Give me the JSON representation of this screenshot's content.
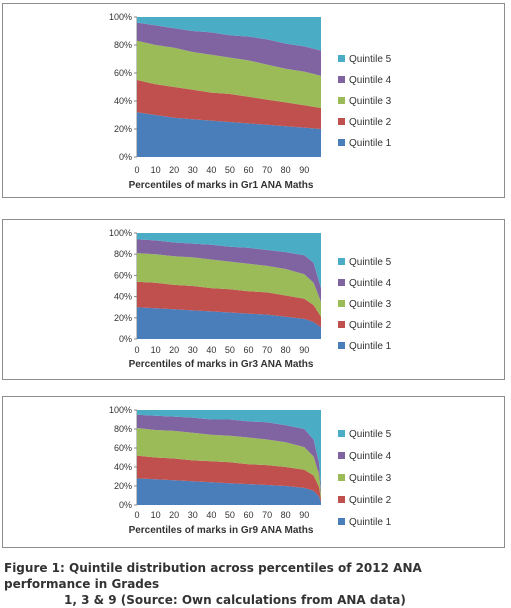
{
  "caption": {
    "line1": "Figure 1:  Quintile distribution across percentiles of 2012 ANA performance in Grades",
    "line2": "1, 3 & 9 (Source: Own calculations from ANA data)"
  },
  "colors": {
    "Quintile 1": "#4a7ebb",
    "Quintile 2": "#c0504d",
    "Quintile 3": "#9bbb59",
    "Quintile 4": "#8064a2",
    "Quintile 5": "#4bacc6"
  },
  "chart_data": [
    {
      "type": "area",
      "stacked": "percent",
      "xlabel": "Percentiles of marks in Gr1 ANA Maths",
      "x_ticks": [
        "0",
        "10",
        "20",
        "30",
        "40",
        "50",
        "60",
        "70",
        "80",
        "90"
      ],
      "y_ticks": [
        "0%",
        "20%",
        "40%",
        "60%",
        "80%",
        "100%"
      ],
      "ylim": [
        0,
        100
      ],
      "x": [
        0,
        10,
        20,
        30,
        40,
        50,
        60,
        70,
        80,
        90,
        99
      ],
      "legend": [
        "Quintile 5",
        "Quintile 4",
        "Quintile 3",
        "Quintile 2",
        "Quintile 1"
      ],
      "legend_position": "right",
      "series": [
        {
          "name": "Quintile 1",
          "values": [
            32,
            30,
            28,
            27,
            26,
            25,
            24,
            23,
            22,
            21,
            20
          ]
        },
        {
          "name": "Quintile 2",
          "values": [
            23,
            22,
            22,
            21,
            20,
            20,
            19,
            18,
            17,
            16,
            15
          ]
        },
        {
          "name": "Quintile 3",
          "values": [
            28,
            28,
            28,
            27,
            27,
            26,
            26,
            25,
            24,
            24,
            23
          ]
        },
        {
          "name": "Quintile 4",
          "values": [
            13,
            14,
            14,
            15,
            16,
            16,
            17,
            18,
            18,
            18,
            18
          ]
        },
        {
          "name": "Quintile 5",
          "values": [
            4,
            6,
            8,
            10,
            11,
            13,
            14,
            16,
            19,
            21,
            24
          ]
        }
      ]
    },
    {
      "type": "area",
      "stacked": "percent",
      "xlabel": "Percentiles of marks in Gr3 ANA Maths",
      "x_ticks": [
        "0",
        "10",
        "20",
        "30",
        "40",
        "50",
        "60",
        "70",
        "80",
        "90"
      ],
      "y_ticks": [
        "0%",
        "20%",
        "40%",
        "60%",
        "80%",
        "100%"
      ],
      "ylim": [
        0,
        100
      ],
      "x": [
        0,
        10,
        20,
        30,
        40,
        50,
        60,
        70,
        80,
        90,
        95,
        99
      ],
      "legend": [
        "Quintile 5",
        "Quintile 4",
        "Quintile 3",
        "Quintile 2",
        "Quintile 1"
      ],
      "legend_position": "right",
      "series": [
        {
          "name": "Quintile 1",
          "values": [
            30,
            29,
            28,
            27,
            26,
            25,
            24,
            23,
            21,
            19,
            16,
            11
          ]
        },
        {
          "name": "Quintile 2",
          "values": [
            24,
            24,
            23,
            23,
            22,
            22,
            21,
            21,
            20,
            19,
            16,
            10
          ]
        },
        {
          "name": "Quintile 3",
          "values": [
            27,
            27,
            27,
            27,
            27,
            26,
            26,
            25,
            25,
            23,
            21,
            14
          ]
        },
        {
          "name": "Quintile 4",
          "values": [
            13,
            13,
            13,
            13,
            14,
            14,
            15,
            15,
            16,
            18,
            19,
            13
          ]
        },
        {
          "name": "Quintile 5",
          "values": [
            6,
            7,
            9,
            10,
            11,
            13,
            14,
            16,
            18,
            21,
            28,
            52
          ]
        }
      ]
    },
    {
      "type": "area",
      "stacked": "percent",
      "xlabel": "Percentiles of marks in Gr9 ANA Maths",
      "x_ticks": [
        "0",
        "10",
        "20",
        "30",
        "40",
        "50",
        "60",
        "70",
        "80",
        "90"
      ],
      "y_ticks": [
        "0%",
        "20%",
        "40%",
        "60%",
        "80%",
        "100%"
      ],
      "ylim": [
        0,
        100
      ],
      "x": [
        0,
        10,
        20,
        30,
        40,
        50,
        60,
        70,
        80,
        90,
        95,
        98,
        99
      ],
      "legend": [
        "Quintile 5",
        "Quintile 4",
        "Quintile 3",
        "Quintile 2",
        "Quintile 1"
      ],
      "legend_position": "right",
      "series": [
        {
          "name": "Quintile 1",
          "values": [
            28,
            27,
            26,
            25,
            24,
            23,
            22,
            21,
            20,
            18,
            15,
            9,
            3
          ]
        },
        {
          "name": "Quintile 2",
          "values": [
            24,
            23,
            23,
            22,
            22,
            22,
            21,
            21,
            20,
            19,
            16,
            10,
            3
          ]
        },
        {
          "name": "Quintile 3",
          "values": [
            29,
            29,
            29,
            29,
            28,
            28,
            28,
            27,
            26,
            24,
            20,
            13,
            5
          ]
        },
        {
          "name": "Quintile 4",
          "values": [
            14,
            15,
            15,
            16,
            16,
            17,
            17,
            18,
            18,
            19,
            18,
            12,
            5
          ]
        },
        {
          "name": "Quintile 5",
          "values": [
            5,
            6,
            7,
            8,
            10,
            10,
            12,
            13,
            16,
            20,
            31,
            56,
            84
          ]
        }
      ]
    }
  ]
}
